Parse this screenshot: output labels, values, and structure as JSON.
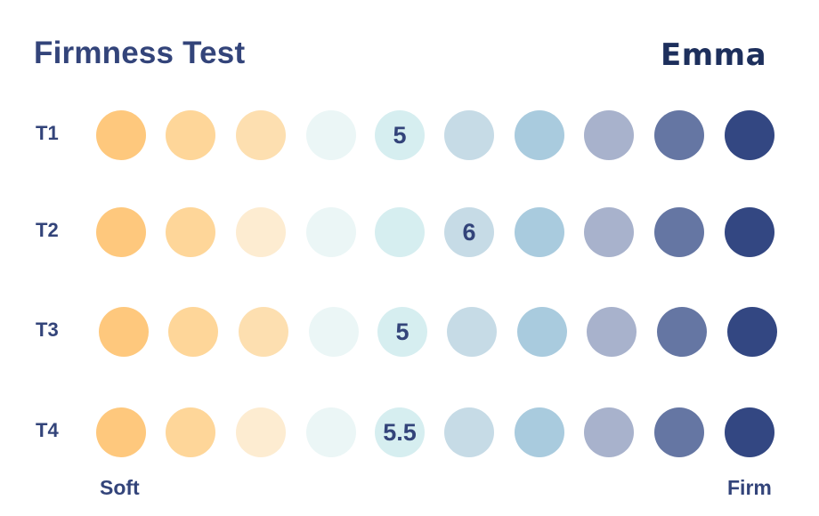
{
  "header": {
    "title": "Firmness Test",
    "brand": "Emma"
  },
  "colors": {
    "text": "#33447a",
    "brand": "#1d2f5c",
    "scale": [
      "#fec87d",
      "#fed699",
      "#fddfb0",
      "#ebf6f6",
      "#d6eef0",
      "#c6dbe6",
      "#a9cbde",
      "#a8b2cc",
      "#6576a3",
      "#334782"
    ],
    "t2_dot3": "#fdecd1",
    "t4_dot3": "#fdecd1"
  },
  "chart_data": {
    "type": "table",
    "title": "Firmness Test",
    "scale_positions": 10,
    "xlabel_left": "Soft",
    "xlabel_right": "Firm",
    "rows": [
      {
        "label": "T1",
        "value": "5",
        "marked_position": 5
      },
      {
        "label": "T2",
        "value": "6",
        "marked_position": 6
      },
      {
        "label": "T3",
        "value": "5",
        "marked_position": 5
      },
      {
        "label": "T4",
        "value": "5.5",
        "marked_position": 5
      }
    ]
  }
}
